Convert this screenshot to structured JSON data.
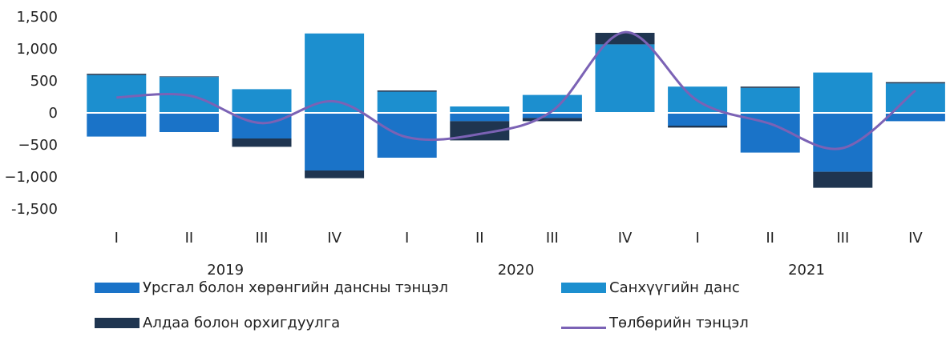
{
  "chart_data": {
    "type": "bar",
    "ylim": [
      -1500,
      1500
    ],
    "yticks": [
      1500,
      1000,
      500,
      0,
      -500,
      -1000,
      -1500
    ],
    "ytick_labels": [
      "1,500",
      "1,000",
      "500",
      "0",
      "−500",
      "−1,000",
      "-1,500"
    ],
    "categories": [
      "I",
      "II",
      "III",
      "IV",
      "I",
      "II",
      "III",
      "IV",
      "I",
      "II",
      "III",
      "IV"
    ],
    "years": [
      {
        "label": "2019",
        "span": [
          0,
          3
        ]
      },
      {
        "label": "2020",
        "span": [
          4,
          7
        ]
      },
      {
        "label": "2021",
        "span": [
          8,
          11
        ]
      }
    ],
    "series": [
      {
        "name": "Урсгал болон хөрөнгийн дансны тэнцэл",
        "type": "bar",
        "color": "#1a73c8",
        "values": [
          -370,
          -300,
          -400,
          -900,
          -700,
          -130,
          -80,
          0,
          -200,
          -620,
          -920,
          -130
        ]
      },
      {
        "name": "Санхүүгийн данс",
        "type": "bar",
        "color": "#1c8fcf",
        "values": [
          590,
          560,
          370,
          1240,
          330,
          100,
          280,
          1070,
          410,
          390,
          630,
          460
        ]
      },
      {
        "name": "Алдаа болон орхигдуулга",
        "type": "bar",
        "color": "#1f3550",
        "values": [
          20,
          10,
          -130,
          -120,
          20,
          -300,
          -50,
          180,
          -30,
          20,
          -250,
          20
        ]
      },
      {
        "name": "Төлбөрийн тэнцэл",
        "type": "line",
        "color": "#7b62b5",
        "values": [
          240,
          270,
          -160,
          180,
          -380,
          -330,
          30,
          1260,
          190,
          -170,
          -550,
          350
        ]
      }
    ],
    "legend": {
      "placement": "bottom"
    }
  }
}
